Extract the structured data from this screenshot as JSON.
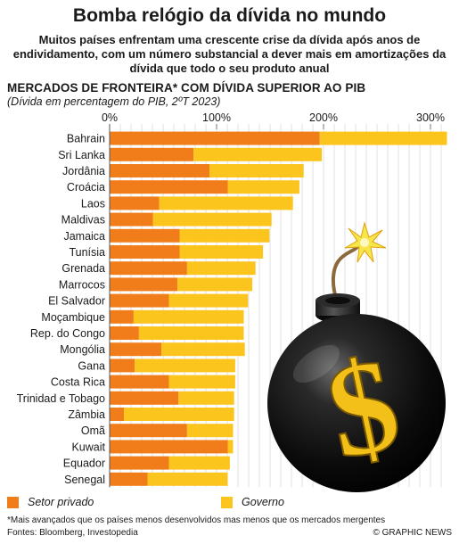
{
  "header": {
    "title": "Bomba relógio da dívida no mundo",
    "subtitle": "Muitos países enfrentam uma crescente crise da dívida após anos de endividamento, com um número substancial a dever mais em amortizações da dívida que todo o seu produto anual"
  },
  "chart_data": {
    "type": "bar",
    "orientation": "horizontal",
    "stacked": true,
    "title": "MERCADOS DE FRONTEIRA* COM DÍVIDA SUPERIOR AO PIB",
    "note": "(Dívida em percentagem do PIB, 2ºT 2023)",
    "xlim": [
      0,
      320
    ],
    "x_ticks": [
      0,
      100,
      200,
      300
    ],
    "x_tick_labels": [
      "0%",
      "100%",
      "200%",
      "300%"
    ],
    "grid": true,
    "legend_position": "bottom-left",
    "categories": [
      "Bahrain",
      "Sri Lanka",
      "Jordânia",
      "Croácia",
      "Laos",
      "Maldivas",
      "Jamaica",
      "Tunísia",
      "Grenada",
      "Marrocos",
      "El Salvador",
      "Moçambique",
      "Rep. do Congo",
      "Mongólia",
      "Gana",
      "Costa Rica",
      "Trinidad e Tobago",
      "Zâmbia",
      "Omã",
      "Kuwait",
      "Equador",
      "Senegal"
    ],
    "series": [
      {
        "name": "Setor privado",
        "color": "#f07d1a",
        "values": [
          196,
          78,
          93,
          110,
          46,
          40,
          65,
          65,
          72,
          63,
          55,
          22,
          27,
          48,
          23,
          55,
          64,
          13,
          72,
          110,
          55,
          35
        ]
      },
      {
        "name": "Governo",
        "color": "#fcc51e",
        "values": [
          119,
          120,
          88,
          67,
          125,
          111,
          84,
          78,
          64,
          70,
          74,
          103,
          98,
          78,
          94,
          62,
          52,
          103,
          43,
          5,
          57,
          75
        ]
      }
    ]
  },
  "footer": {
    "footnote": "*Mais avançados que os países menos desenvolvidos mas menos que os mercados mergentes",
    "sources": "Fontes: Bloomberg, Investopedia",
    "credit": "© GRAPHIC NEWS"
  },
  "illustration": {
    "icon": "bomb-with-dollar-sign-icon",
    "symbol": "$"
  }
}
